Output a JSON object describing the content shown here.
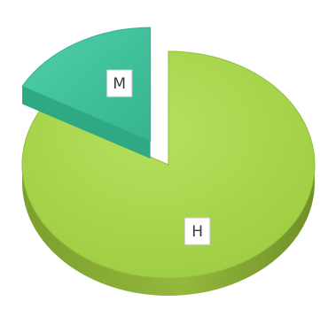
{
  "chart_data": {
    "type": "pie",
    "style": "3d-exploded",
    "labels": [
      "H",
      "M"
    ],
    "values": [
      83,
      17
    ],
    "colors": {
      "H": "#a9d64e",
      "M": "#3fc7a0"
    },
    "exploded": [
      "M"
    ],
    "legend": "none",
    "title": ""
  }
}
